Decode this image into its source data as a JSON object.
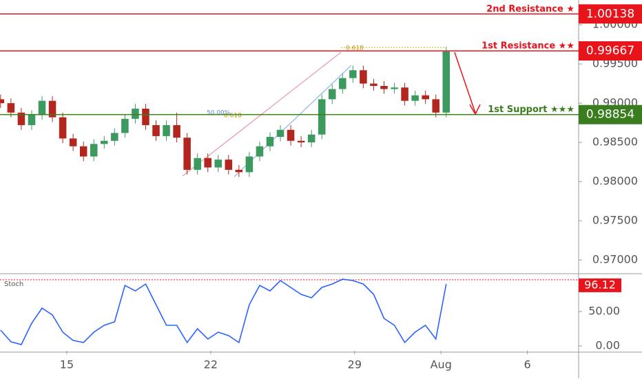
{
  "chart_data": {
    "type": "candlestick",
    "up_color": "#3c9a5f",
    "down_color": "#b3261e",
    "xlim": [
      -2.32,
      17.78
    ],
    "xticks": [
      {
        "value": 0,
        "label": "15"
      },
      {
        "value": 5,
        "label": "22"
      },
      {
        "value": 10,
        "label": "29"
      },
      {
        "value": 13,
        "label": "Aug"
      },
      {
        "value": 16,
        "label": "6"
      }
    ],
    "ylim": [
      0.96825,
      1.00316
    ],
    "yticks": [
      {
        "value": 0.97,
        "label": "0.97000"
      },
      {
        "value": 0.975,
        "label": "0.97500"
      },
      {
        "value": 0.98,
        "label": "0.98000"
      },
      {
        "value": 0.985,
        "label": "0.98500"
      },
      {
        "value": 0.99,
        "label": "0.99000"
      },
      {
        "value": 0.995,
        "label": "0.99500"
      },
      {
        "value": 1.0,
        "label": "1.00000"
      }
    ],
    "x": [
      -2.3,
      -1.94,
      -1.58,
      -1.22,
      -0.86,
      -0.5,
      -0.14,
      0.22,
      0.58,
      0.94,
      1.3,
      1.66,
      2.02,
      2.38,
      2.74,
      3.1,
      3.46,
      3.82,
      4.18,
      4.54,
      4.9,
      5.26,
      5.62,
      5.98,
      6.34,
      6.7,
      7.06,
      7.42,
      7.78,
      8.14,
      8.5,
      8.86,
      9.22,
      9.58,
      9.94,
      10.3,
      10.66,
      11.02,
      11.38,
      11.74,
      12.1,
      12.46,
      12.82,
      13.18
    ],
    "ohlc": [
      [
        0.9905,
        0.9911,
        0.9894,
        0.99
      ],
      [
        0.99,
        0.9906,
        0.9882,
        0.9888
      ],
      [
        0.9888,
        0.9894,
        0.9866,
        0.9872
      ],
      [
        0.9872,
        0.9891,
        0.9866,
        0.9885
      ],
      [
        0.9885,
        0.9909,
        0.9879,
        0.9903
      ],
      [
        0.9903,
        0.9909,
        0.9876,
        0.9882
      ],
      [
        0.9882,
        0.9888,
        0.9849,
        0.9855
      ],
      [
        0.9855,
        0.9861,
        0.9839,
        0.9845
      ],
      [
        0.9845,
        0.9851,
        0.9826,
        0.9832
      ],
      [
        0.9832,
        0.9854,
        0.9826,
        0.9848
      ],
      [
        0.9848,
        0.9858,
        0.9842,
        0.9852
      ],
      [
        0.9852,
        0.9868,
        0.9846,
        0.9862
      ],
      [
        0.9862,
        0.9886,
        0.9856,
        0.988
      ],
      [
        0.988,
        0.9899,
        0.9874,
        0.9893
      ],
      [
        0.9893,
        0.9899,
        0.9866,
        0.9872
      ],
      [
        0.9872,
        0.9878,
        0.9852,
        0.9858
      ],
      [
        0.9858,
        0.9878,
        0.9852,
        0.9872
      ],
      [
        0.9872,
        0.9888,
        0.985,
        0.9856
      ],
      [
        0.9856,
        0.9862,
        0.9809,
        0.9815
      ],
      [
        0.9815,
        0.9836,
        0.9809,
        0.983
      ],
      [
        0.983,
        0.9836,
        0.9812,
        0.9818
      ],
      [
        0.9818,
        0.9834,
        0.9812,
        0.9828
      ],
      [
        0.9828,
        0.9834,
        0.9809,
        0.9815
      ],
      [
        0.9815,
        0.9821,
        0.9806,
        0.9812
      ],
      [
        0.9812,
        0.9838,
        0.9806,
        0.9832
      ],
      [
        0.9832,
        0.9851,
        0.9826,
        0.9845
      ],
      [
        0.9845,
        0.9863,
        0.9839,
        0.9857
      ],
      [
        0.9857,
        0.9872,
        0.9851,
        0.9866
      ],
      [
        0.9866,
        0.9872,
        0.9846,
        0.9852
      ],
      [
        0.9852,
        0.9858,
        0.9844,
        0.985
      ],
      [
        0.985,
        0.9866,
        0.9844,
        0.986
      ],
      [
        0.986,
        0.9911,
        0.9854,
        0.9905
      ],
      [
        0.9905,
        0.9924,
        0.9899,
        0.9918
      ],
      [
        0.9918,
        0.9938,
        0.9912,
        0.9932
      ],
      [
        0.9932,
        0.9948,
        0.9926,
        0.9942
      ],
      [
        0.9942,
        0.9948,
        0.9919,
        0.9925
      ],
      [
        0.9925,
        0.9931,
        0.9916,
        0.9922
      ],
      [
        0.9922,
        0.9928,
        0.9912,
        0.9918
      ],
      [
        0.9918,
        0.9926,
        0.9912,
        0.992
      ],
      [
        0.992,
        0.9926,
        0.9897,
        0.9903
      ],
      [
        0.9903,
        0.9916,
        0.9897,
        0.991
      ],
      [
        0.991,
        0.9916,
        0.9899,
        0.9905
      ],
      [
        0.9905,
        0.9911,
        0.9882,
        0.9888
      ],
      [
        0.9888,
        0.9972,
        0.9882,
        0.9966
      ]
    ],
    "levels": [
      {
        "name": "2nd Resistance ★",
        "value": 1.00138,
        "color": "#e8141c"
      },
      {
        "name": "1st Resistance ★★",
        "value": 0.99667,
        "color": "#e8141c"
      },
      {
        "name": "1st Support ★★★",
        "value": 0.98854,
        "color": "#3a7d1e"
      }
    ],
    "annotations": [
      "0.618",
      "50.00%",
      "0.618"
    ],
    "stoch": {
      "title": "Stoch",
      "color": "#2962ff",
      "ylim": [
        -7,
        105
      ],
      "yticks": [
        {
          "value": 0,
          "label": "0.00"
        },
        {
          "value": 50,
          "label": "50.00"
        }
      ],
      "level": 96.12,
      "values": [
        23,
        6,
        2,
        33,
        55,
        45,
        20,
        8,
        5,
        20,
        30,
        35,
        88,
        80,
        90,
        60,
        30,
        30,
        5,
        25,
        10,
        20,
        15,
        5,
        60,
        88,
        80,
        95,
        85,
        75,
        70,
        85,
        90,
        97,
        95,
        90,
        75,
        40,
        30,
        5,
        20,
        30,
        10,
        90
      ]
    }
  }
}
